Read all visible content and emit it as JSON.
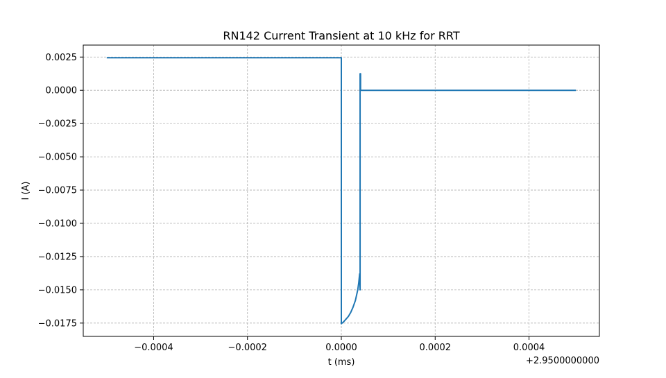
{
  "chart_data": {
    "type": "line",
    "title": "RN142 Current Transient at 10 kHz for RRT",
    "xlabel": "t (ms)",
    "ylabel": "I (A)",
    "x_offset_label": "+2.9500000000",
    "xlim": [
      -0.00055,
      0.00055
    ],
    "ylim": [
      -0.0185,
      0.0034
    ],
    "grid": true,
    "x_ticks": [
      -0.0004,
      -0.0002,
      0.0,
      0.0002,
      0.0004
    ],
    "x_tick_labels": [
      "−0.0004",
      "−0.0002",
      "0.0000",
      "0.0002",
      "0.0004"
    ],
    "y_ticks": [
      0.0025,
      0.0,
      -0.0025,
      -0.005,
      -0.0075,
      -0.01,
      -0.0125,
      -0.015,
      -0.0175
    ],
    "y_tick_labels": [
      "0.0025",
      "0.0000",
      "−0.0025",
      "−0.0050",
      "−0.0075",
      "−0.0100",
      "−0.0125",
      "−0.0150",
      "−0.0175"
    ],
    "series": [
      {
        "color": "#1f77b4",
        "x": [
          -0.0005,
          0.0,
          0.0,
          5e-06,
          1e-05,
          1.5e-05,
          2e-05,
          2.5e-05,
          3e-05,
          3.5e-05,
          3.7e-05,
          3.9e-05,
          4e-05,
          4e-05,
          4.1e-05,
          4.1e-05,
          4.2e-05,
          0.0005
        ],
        "y": [
          0.00245,
          0.00245,
          -0.01755,
          -0.0174,
          -0.0172,
          -0.017,
          -0.0167,
          -0.0163,
          -0.0158,
          -0.015,
          -0.0145,
          -0.0138,
          -0.015,
          0.00125,
          0.00125,
          0.0,
          0.0,
          0.0
        ]
      }
    ]
  }
}
